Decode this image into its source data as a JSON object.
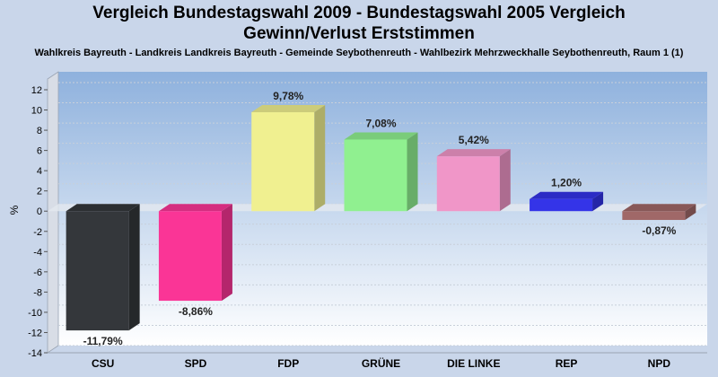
{
  "header": {
    "title_line1": "Vergleich Bundestagswahl 2009 - Bundestagswahl 2005 Vergleich",
    "title_line2": "Gewinn/Verlust Erststimmen",
    "subtitle": "Wahlkreis Bayreuth - Landkreis Landkreis Bayreuth - Gemeinde Seybothenreuth - Wahlbezirk Mehrzweckhalle Seybothenreuth, Raum 1 (1)"
  },
  "chart_data": {
    "type": "bar",
    "title": "Vergleich Bundestagswahl 2009 - Bundestagswahl 2005 Vergleich Gewinn/Verlust Erststimmen",
    "subtitle": "Wahlkreis Bayreuth - Landkreis Landkreis Bayreuth - Gemeinde Seybothenreuth - Wahlbezirk Mehrzweckhalle Seybothenreuth, Raum 1 (1)",
    "xlabel": "",
    "ylabel": "%",
    "ylim": [
      -14,
      12
    ],
    "yticks": [
      12,
      10,
      8,
      6,
      4,
      2,
      0,
      -2,
      -4,
      -6,
      -8,
      -10,
      -12,
      -14
    ],
    "grid": true,
    "categories": [
      "CSU",
      "SPD",
      "FDP",
      "GRÜNE",
      "DIE LINKE",
      "REP",
      "NPD"
    ],
    "values": [
      -11.79,
      -8.86,
      9.78,
      7.08,
      5.42,
      1.2,
      -0.87
    ],
    "value_labels": [
      "-11,79%",
      "-8,86%",
      "9,78%",
      "7,08%",
      "5,42%",
      "1,20%",
      "-0,87%"
    ],
    "colors": [
      "#34373b",
      "#fa3596",
      "#f0f090",
      "#90f090",
      "#f096c8",
      "#3434e8",
      "#a06868"
    ]
  }
}
